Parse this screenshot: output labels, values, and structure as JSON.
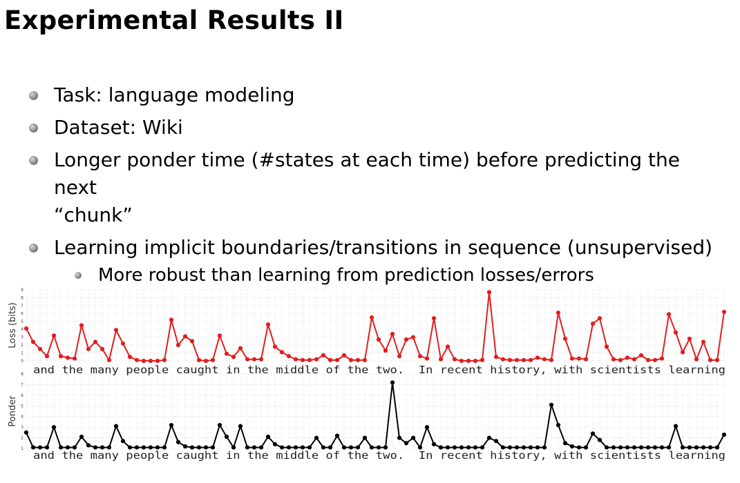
{
  "title": "Experimental Results II",
  "bullets": {
    "b1": "Task: language modeling",
    "b2": "Dataset: Wiki",
    "b3_line1": "Longer ponder time (#states at each time) before predicting the next",
    "b3_line2": "“chunk”",
    "b4": "Learning implicit boundaries/transitions in sequence (unsupervised)",
    "b4_sub": "More robust than learning from prediction losses/errors"
  },
  "colors": {
    "loss": "#e11d1d",
    "ponder": "#000000",
    "grid": "#c8c8c8"
  },
  "chart_data": [
    {
      "type": "line",
      "ylabel": "Loss (bits)",
      "ylim": [
        0,
        9
      ],
      "yticks": [
        "0",
        "1",
        "2",
        "3",
        "4",
        "5",
        "6",
        "7",
        "8",
        "9"
      ],
      "grid": true,
      "xlabel": "and the many people caught in the middle of the two.  In recent history, with scientists learning",
      "color": "#e11d1d",
      "values": [
        4.1,
        2.4,
        1.5,
        0.6,
        3.2,
        0.6,
        0.4,
        0.3,
        4.5,
        1.5,
        2.4,
        1.5,
        0.1,
        3.9,
        2.2,
        0.5,
        0.1,
        0,
        0,
        0,
        0.1,
        5.2,
        2.0,
        3.1,
        2.5,
        0.1,
        0,
        0.1,
        3.2,
        0.9,
        0.5,
        1.6,
        0.2,
        0.2,
        0.2,
        4.6,
        1.8,
        1.1,
        0.6,
        0.2,
        0.1,
        0.1,
        0.2,
        0.7,
        0.1,
        0.1,
        0.7,
        0.1,
        0.1,
        0.1,
        5.5,
        2.7,
        1.3,
        3.4,
        0.6,
        2.7,
        3.0,
        0.6,
        0.3,
        5.4,
        0.2,
        1.8,
        0.2,
        0,
        0,
        0,
        0.1,
        8.7,
        0.5,
        0.2,
        0.1,
        0.1,
        0.1,
        0.1,
        0.4,
        0.2,
        0.1,
        6.1,
        2.8,
        0.3,
        0.3,
        0.2,
        4.7,
        5.4,
        1.8,
        0.2,
        0.1,
        0.4,
        0.2,
        0.7,
        0.1,
        0.1,
        0.3,
        5.9,
        3.6,
        1.1,
        2.8,
        0.2,
        2.4,
        0.1,
        0.1,
        6.2
      ]
    },
    {
      "type": "line",
      "ylabel": "Ponder",
      "ylim": [
        1,
        8
      ],
      "yticks": [
        "1",
        "2",
        "3",
        "4",
        "5",
        "6",
        "7",
        "8"
      ],
      "grid": true,
      "xlabel": "and the many people caught in the middle of the two.  In recent history, with scientists learning",
      "color": "#000000",
      "values": [
        2.5,
        1.1,
        1.1,
        1.1,
        3.0,
        1.1,
        1.1,
        1.1,
        2.1,
        1.3,
        1.1,
        1.1,
        1.1,
        3.1,
        1.7,
        1.1,
        1.1,
        1.1,
        1.1,
        1.1,
        1.1,
        3.2,
        1.6,
        1.2,
        1.1,
        1.1,
        1.1,
        1.1,
        3.2,
        2.1,
        1.1,
        3.1,
        1.1,
        1.1,
        1.1,
        2.1,
        1.4,
        1.1,
        1.1,
        1.1,
        1.1,
        1.1,
        2.0,
        1.1,
        1.1,
        2.2,
        1.1,
        1.1,
        1.1,
        2.0,
        1.1,
        1.1,
        1.1,
        7.2,
        2.0,
        1.5,
        2.0,
        1.1,
        3.0,
        1.4,
        1.1,
        1.1,
        1.1,
        1.1,
        1.1,
        1.1,
        1.1,
        2.0,
        1.7,
        1.1,
        1.1,
        1.1,
        1.1,
        1.1,
        1.1,
        1.1,
        5.1,
        3.2,
        1.5,
        1.2,
        1.1,
        1.1,
        2.4,
        1.8,
        1.1,
        1.1,
        1.1,
        1.1,
        1.1,
        1.1,
        1.1,
        1.1,
        1.1,
        1.1,
        3.1,
        1.1,
        1.1,
        1.1,
        1.1,
        1.1,
        1.1,
        2.3
      ]
    }
  ]
}
